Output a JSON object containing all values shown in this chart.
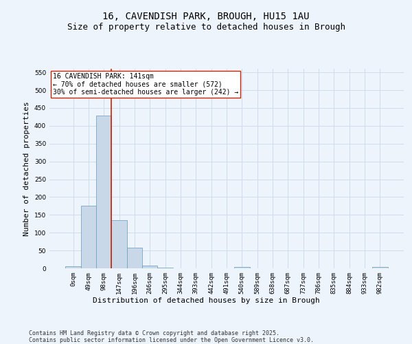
{
  "title_line1": "16, CAVENDISH PARK, BROUGH, HU15 1AU",
  "title_line2": "Size of property relative to detached houses in Brough",
  "xlabel": "Distribution of detached houses by size in Brough",
  "ylabel": "Number of detached properties",
  "categories": [
    "0sqm",
    "49sqm",
    "98sqm",
    "147sqm",
    "196sqm",
    "246sqm",
    "295sqm",
    "344sqm",
    "393sqm",
    "442sqm",
    "491sqm",
    "540sqm",
    "589sqm",
    "638sqm",
    "687sqm",
    "737sqm",
    "786sqm",
    "835sqm",
    "884sqm",
    "933sqm",
    "982sqm"
  ],
  "values": [
    5,
    176,
    428,
    135,
    57,
    8,
    1,
    0,
    0,
    0,
    0,
    3,
    0,
    0,
    0,
    0,
    0,
    0,
    0,
    0,
    3
  ],
  "bar_color": "#c8d8e8",
  "bar_edge_color": "#6699bb",
  "grid_color": "#ccddee",
  "background_color": "#eef4fb",
  "vline_x": 3,
  "vline_color": "#cc2200",
  "annotation_text": "16 CAVENDISH PARK: 141sqm\n← 70% of detached houses are smaller (572)\n30% of semi-detached houses are larger (242) →",
  "annotation_box_color": "#ffffff",
  "annotation_box_edge_color": "#cc2200",
  "ylim": [
    0,
    560
  ],
  "yticks": [
    0,
    50,
    100,
    150,
    200,
    250,
    300,
    350,
    400,
    450,
    500,
    550
  ],
  "footer_text": "Contains HM Land Registry data © Crown copyright and database right 2025.\nContains public sector information licensed under the Open Government Licence v3.0.",
  "title_fontsize": 10,
  "subtitle_fontsize": 9,
  "tick_fontsize": 6.5,
  "label_fontsize": 8,
  "footer_fontsize": 6,
  "annotation_fontsize": 7
}
